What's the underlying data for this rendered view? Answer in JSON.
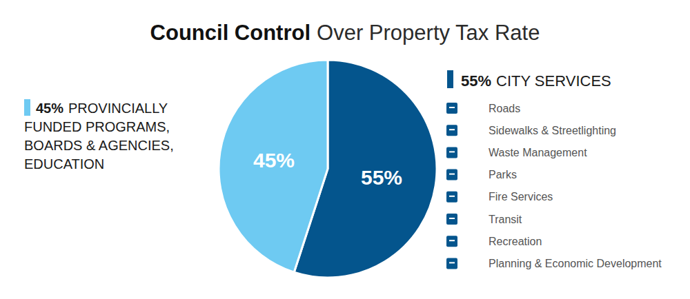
{
  "chart_data": {
    "type": "pie",
    "title": [
      "Council Control",
      "Over Property Tax Rate"
    ],
    "categories": [
      "CITY SERVICES",
      "PROVINCIALLY FUNDED PROGRAMS, BOARDS & AGENCIES, EDUCATION"
    ],
    "values": [
      55,
      45
    ],
    "value_labels": [
      "55%",
      "45%"
    ],
    "colors": [
      "#04558d",
      "#6ecaf2"
    ],
    "data_labels": true,
    "annotations": [
      "Roads",
      "Sidewalks & Streetlighting",
      "Waste Management",
      "Parks",
      "Fire Services",
      "Transit",
      "Recreation",
      "Planning & Economic Development"
    ]
  }
}
